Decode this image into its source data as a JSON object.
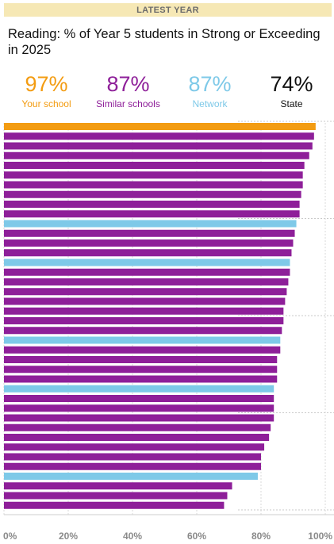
{
  "header": {
    "banner": "LATEST YEAR"
  },
  "title": "Reading: % of Year 5 students in Strong or Exceeding in 2025",
  "kpis": [
    {
      "value": "97%",
      "label": "Your school",
      "color": "#f39c12"
    },
    {
      "value": "87%",
      "label": "Similar schools",
      "color": "#8e1f99"
    },
    {
      "value": "87%",
      "label": "Network",
      "color": "#7ec9e8"
    },
    {
      "value": "74%",
      "label": "State",
      "color": "#111111"
    }
  ],
  "colors": {
    "your_school": "#f39c12",
    "similar": "#8e1f99",
    "network": "#7ec9e8"
  },
  "chart_data": {
    "type": "bar",
    "orientation": "horizontal",
    "xlim": [
      0,
      100
    ],
    "x_ticks": [
      "0%",
      "20%",
      "40%",
      "60%",
      "80%",
      "100%"
    ],
    "grid": "dotted vertical",
    "bars": [
      {
        "value": 97,
        "group": "your_school"
      },
      {
        "value": 96.5,
        "group": "similar"
      },
      {
        "value": 96,
        "group": "similar"
      },
      {
        "value": 95,
        "group": "similar"
      },
      {
        "value": 93.5,
        "group": "similar"
      },
      {
        "value": 93,
        "group": "similar"
      },
      {
        "value": 93,
        "group": "similar"
      },
      {
        "value": 92.5,
        "group": "similar"
      },
      {
        "value": 92,
        "group": "similar"
      },
      {
        "value": 92,
        "group": "similar"
      },
      {
        "value": 91,
        "group": "network"
      },
      {
        "value": 90.5,
        "group": "similar"
      },
      {
        "value": 90,
        "group": "similar"
      },
      {
        "value": 89.5,
        "group": "similar"
      },
      {
        "value": 89,
        "group": "network"
      },
      {
        "value": 89,
        "group": "similar"
      },
      {
        "value": 88.5,
        "group": "similar"
      },
      {
        "value": 88,
        "group": "similar"
      },
      {
        "value": 87.5,
        "group": "similar"
      },
      {
        "value": 87,
        "group": "similar"
      },
      {
        "value": 87,
        "group": "similar"
      },
      {
        "value": 86.5,
        "group": "similar"
      },
      {
        "value": 86,
        "group": "network"
      },
      {
        "value": 86,
        "group": "similar"
      },
      {
        "value": 85,
        "group": "similar"
      },
      {
        "value": 85,
        "group": "similar"
      },
      {
        "value": 85,
        "group": "similar"
      },
      {
        "value": 84,
        "group": "network"
      },
      {
        "value": 84,
        "group": "similar"
      },
      {
        "value": 84,
        "group": "similar"
      },
      {
        "value": 84,
        "group": "similar"
      },
      {
        "value": 83,
        "group": "similar"
      },
      {
        "value": 82.5,
        "group": "similar"
      },
      {
        "value": 81,
        "group": "similar"
      },
      {
        "value": 80,
        "group": "similar"
      },
      {
        "value": 80,
        "group": "similar"
      },
      {
        "value": 79,
        "group": "network"
      },
      {
        "value": 71,
        "group": "similar"
      },
      {
        "value": 69.5,
        "group": "similar"
      },
      {
        "value": 68.5,
        "group": "similar"
      }
    ]
  }
}
